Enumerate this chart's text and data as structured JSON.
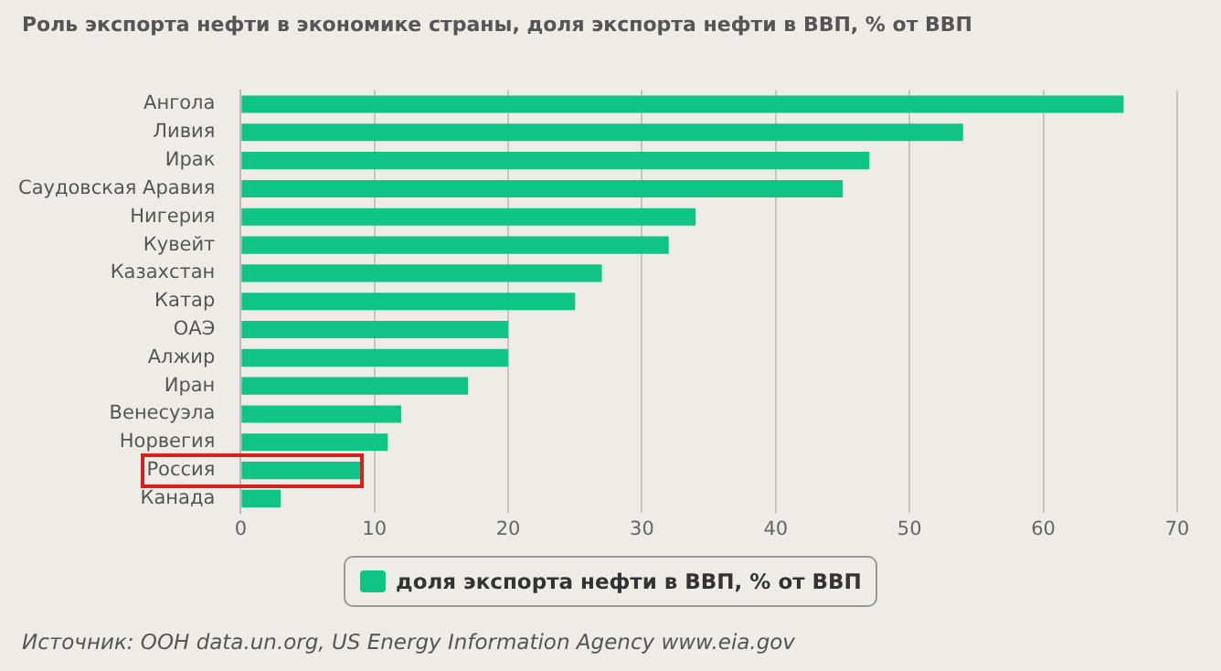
{
  "chart_data": {
    "type": "bar",
    "orientation": "horizontal",
    "title": "Роль экспорта нефти в экономике страны, доля экспорта нефти в ВВП, % от ВВП",
    "categories": [
      "Ангола",
      "Ливия",
      "Ирак",
      "Саудовская Аравия",
      "Нигерия",
      "Кувейт",
      "Казахстан",
      "Катар",
      "ОАЭ",
      "Алжир",
      "Иран",
      "Венесуэла",
      "Норвегия",
      "Россия",
      "Канада"
    ],
    "series": [
      {
        "name": "доля экспорта нефти в ВВП, % от ВВП",
        "color": "#10c487",
        "values": [
          66,
          54,
          47,
          45,
          34,
          32,
          27,
          25,
          20,
          20,
          17,
          12,
          11,
          9,
          3
        ]
      }
    ],
    "xlim": [
      0,
      70
    ],
    "xticks": [
      0,
      10,
      20,
      30,
      40,
      50,
      60,
      70
    ],
    "grid": "x",
    "legend": "bottom",
    "annotations": [
      "Источник: ООН data.un.org, US Energy Information Agency www.eia.gov"
    ]
  }
}
